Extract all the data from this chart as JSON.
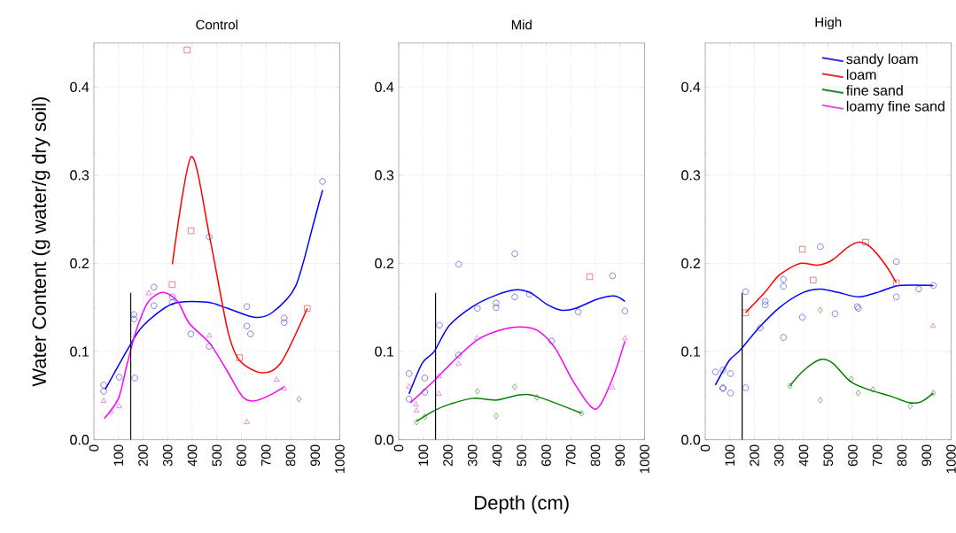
{
  "chart_data": [
    {
      "type": "scatter",
      "title": "Control",
      "ylabel": "Water Content (g water/g dry soil)",
      "xlim": [
        0,
        1000
      ],
      "ylim": [
        0,
        0.45
      ],
      "grid": true,
      "legend": false,
      "xticks": [
        0,
        100,
        200,
        300,
        400,
        500,
        600,
        700,
        800,
        900,
        1000
      ],
      "yticks": [
        {
          "value": 0,
          "label": "0.0"
        },
        {
          "value": 0.1,
          "label": "0.1"
        },
        {
          "value": 0.2,
          "label": "0.2"
        },
        {
          "value": 0.3,
          "label": "0.3"
        },
        {
          "value": 0.4,
          "label": "0.4"
        }
      ],
      "ref_lines": [
        {
          "axis": "x",
          "value": 150,
          "color": "#000000"
        }
      ],
      "series": [
        {
          "marker": "circle",
          "color": "#3333cc",
          "x": [
            40,
            40,
            103,
            163,
            163,
            166,
            244,
            244,
            319,
            319,
            394,
            469,
            469,
            622,
            622,
            637,
            774,
            774,
            930
          ],
          "values": [
            0.062,
            0.055,
            0.071,
            0.142,
            0.137,
            0.07,
            0.173,
            0.152,
            0.162,
            0.156,
            0.12,
            0.23,
            0.106,
            0.151,
            0.129,
            0.12,
            0.138,
            0.133,
            0.293
          ]
        },
        {
          "marker": "square",
          "color": "#dd3333",
          "x": [
            379,
            395,
            318,
            592,
            868
          ],
          "values": [
            0.442,
            0.237,
            0.176,
            0.093,
            0.149
          ]
        },
        {
          "marker": "diamond",
          "color": "#228822",
          "x": [
            834
          ],
          "values": [
            0.046
          ]
        },
        {
          "marker": "triangle",
          "color": "#dd44dd",
          "x": [
            40,
            70,
            103,
            223,
            469,
            622,
            743,
            774
          ],
          "values": [
            0.044,
            0.032,
            0.038,
            0.166,
            0.118,
            0.02,
            0.068,
            0.058
          ]
        },
        {
          "type": "line",
          "color": "#0000ff",
          "x": [
            46,
            136,
            199,
            319,
            460,
            544,
            652,
            724,
            820,
            892,
            916,
            930
          ],
          "values": [
            0.057,
            0.102,
            0.129,
            0.154,
            0.156,
            0.149,
            0.139,
            0.144,
            0.174,
            0.244,
            0.269,
            0.283
          ]
        },
        {
          "type": "line",
          "color": "#ff0000",
          "x": [
            319,
            396,
            472,
            544,
            592,
            682,
            760,
            868
          ],
          "values": [
            0.199,
            0.321,
            0.228,
            0.124,
            0.09,
            0.076,
            0.087,
            0.149
          ]
        },
        {
          "type": "line",
          "color": "#ff00ff",
          "x": [
            42,
            100,
            136,
            172,
            220,
            280,
            340,
            388,
            472,
            544,
            604,
            652,
            712,
            774
          ],
          "values": [
            0.024,
            0.047,
            0.087,
            0.124,
            0.156,
            0.167,
            0.157,
            0.132,
            0.109,
            0.077,
            0.049,
            0.044,
            0.05,
            0.06
          ]
        }
      ]
    },
    {
      "type": "scatter",
      "title": "Mid",
      "xlabel": "Depth (cm)",
      "xlim": [
        0,
        1000
      ],
      "ylim": [
        0,
        0.45
      ],
      "grid": true,
      "legend": false,
      "xticks": [
        0,
        100,
        200,
        300,
        400,
        500,
        600,
        700,
        800,
        900,
        1000
      ],
      "yticks": [
        {
          "value": 0,
          "label": "0.0"
        },
        {
          "value": 0.1,
          "label": "0.1"
        },
        {
          "value": 0.2,
          "label": "0.2"
        },
        {
          "value": 0.3,
          "label": "0.3"
        },
        {
          "value": 0.4,
          "label": "0.4"
        }
      ],
      "ref_lines": [
        {
          "axis": "x",
          "value": 150,
          "color": "#000000"
        }
      ],
      "series": [
        {
          "marker": "circle",
          "color": "#3333cc",
          "x": [
            42,
            42,
            106,
            106,
            166,
            244,
            244,
            320,
            396,
            396,
            472,
            472,
            532,
            622,
            730,
            870,
            920
          ],
          "values": [
            0.075,
            0.046,
            0.07,
            0.054,
            0.13,
            0.199,
            0.096,
            0.149,
            0.155,
            0.15,
            0.211,
            0.162,
            0.165,
            0.112,
            0.145,
            0.186,
            0.146
          ]
        },
        {
          "marker": "square",
          "color": "#dd3333",
          "x": [
            777
          ],
          "values": [
            0.185
          ]
        },
        {
          "marker": "diamond",
          "color": "#228822",
          "x": [
            72,
            106,
            320,
            396,
            472,
            562,
            744
          ],
          "values": [
            0.02,
            0.026,
            0.055,
            0.027,
            0.06,
            0.048,
            0.03
          ]
        },
        {
          "marker": "triangle",
          "color": "#dd44dd",
          "x": [
            42,
            70,
            72,
            163,
            163,
            244,
            318,
            870,
            920
          ],
          "values": [
            0.06,
            0.04,
            0.033,
            0.072,
            0.052,
            0.086,
            0.115,
            0.059,
            0.115
          ]
        },
        {
          "type": "line",
          "color": "#0000ff",
          "x": [
            42,
            96,
            144,
            204,
            300,
            396,
            480,
            540,
            600,
            660,
            720,
            804,
            876,
            920
          ],
          "values": [
            0.052,
            0.087,
            0.1,
            0.129,
            0.151,
            0.164,
            0.17,
            0.166,
            0.154,
            0.147,
            0.149,
            0.159,
            0.163,
            0.157
          ]
        },
        {
          "type": "line",
          "color": "#ff00ff",
          "x": [
            48,
            144,
            240,
            324,
            408,
            492,
            564,
            636,
            708,
            780,
            816,
            876,
            920
          ],
          "values": [
            0.042,
            0.067,
            0.094,
            0.114,
            0.124,
            0.128,
            0.124,
            0.104,
            0.067,
            0.038,
            0.038,
            0.074,
            0.112
          ]
        },
        {
          "type": "line",
          "color": "#008000",
          "x": [
            72,
            144,
            204,
            300,
            396,
            492,
            564,
            744
          ],
          "values": [
            0.021,
            0.033,
            0.04,
            0.047,
            0.045,
            0.051,
            0.049,
            0.03
          ]
        }
      ]
    },
    {
      "type": "scatter",
      "title": "High",
      "xlim": [
        0,
        1000
      ],
      "ylim": [
        0,
        0.45
      ],
      "grid": true,
      "legend": "top right",
      "xticks": [
        0,
        100,
        200,
        300,
        400,
        500,
        600,
        700,
        800,
        900,
        1000
      ],
      "yticks": [
        {
          "value": 0,
          "label": "0.0"
        },
        {
          "value": 0.1,
          "label": "0.1"
        },
        {
          "value": 0.2,
          "label": "0.2"
        },
        {
          "value": 0.3,
          "label": "0.3"
        },
        {
          "value": 0.4,
          "label": "0.4"
        }
      ],
      "ref_lines": [
        {
          "axis": "x",
          "value": 150,
          "color": "#000000"
        }
      ],
      "series": [
        {
          "name": "sandy loam",
          "marker": "circle",
          "color": "#3333cc",
          "x": [
            41,
            72,
            72,
            72,
            103,
            103,
            164,
            164,
            223,
            244,
            244,
            318,
            318,
            318,
            395,
            468,
            528,
            618,
            623,
            777,
            777,
            868,
            928
          ],
          "values": [
            0.077,
            0.079,
            0.059,
            0.058,
            0.075,
            0.053,
            0.168,
            0.059,
            0.127,
            0.157,
            0.153,
            0.182,
            0.174,
            0.116,
            0.139,
            0.219,
            0.143,
            0.151,
            0.149,
            0.202,
            0.162,
            0.171,
            0.175
          ]
        },
        {
          "name": "loam",
          "marker": "square",
          "color": "#dd3333",
          "x": [
            164,
            395,
            439,
            652,
            777
          ],
          "values": [
            0.144,
            0.216,
            0.181,
            0.224,
            0.178
          ]
        },
        {
          "name": "fine sand",
          "marker": "diamond",
          "color": "#228822",
          "x": [
            344,
            468,
            468,
            594,
            622,
            682,
            834,
            928
          ],
          "values": [
            0.061,
            0.147,
            0.045,
            0.069,
            0.053,
            0.057,
            0.038,
            0.053
          ]
        },
        {
          "name": "loamy fine sand",
          "marker": "triangle",
          "color": "#dd44dd",
          "x": [
            926
          ],
          "values": [
            0.129
          ]
        },
        {
          "type": "line",
          "color": "#0000ff",
          "x": [
            41,
            98,
            140,
            218,
            302,
            398,
            470,
            542,
            626,
            710,
            788,
            928
          ],
          "values": [
            0.062,
            0.09,
            0.101,
            0.127,
            0.15,
            0.167,
            0.171,
            0.167,
            0.162,
            0.168,
            0.175,
            0.175
          ]
        },
        {
          "type": "line",
          "color": "#ff0000",
          "x": [
            164,
            242,
            302,
            386,
            458,
            518,
            578,
            626,
            674,
            734,
            777
          ],
          "values": [
            0.144,
            0.167,
            0.187,
            0.2,
            0.198,
            0.204,
            0.218,
            0.224,
            0.218,
            0.198,
            0.178
          ]
        },
        {
          "type": "line",
          "color": "#008000",
          "x": [
            344,
            398,
            468,
            518,
            590,
            662,
            758,
            830,
            878,
            928
          ],
          "values": [
            0.061,
            0.078,
            0.091,
            0.087,
            0.066,
            0.057,
            0.049,
            0.042,
            0.043,
            0.053
          ]
        }
      ]
    }
  ]
}
